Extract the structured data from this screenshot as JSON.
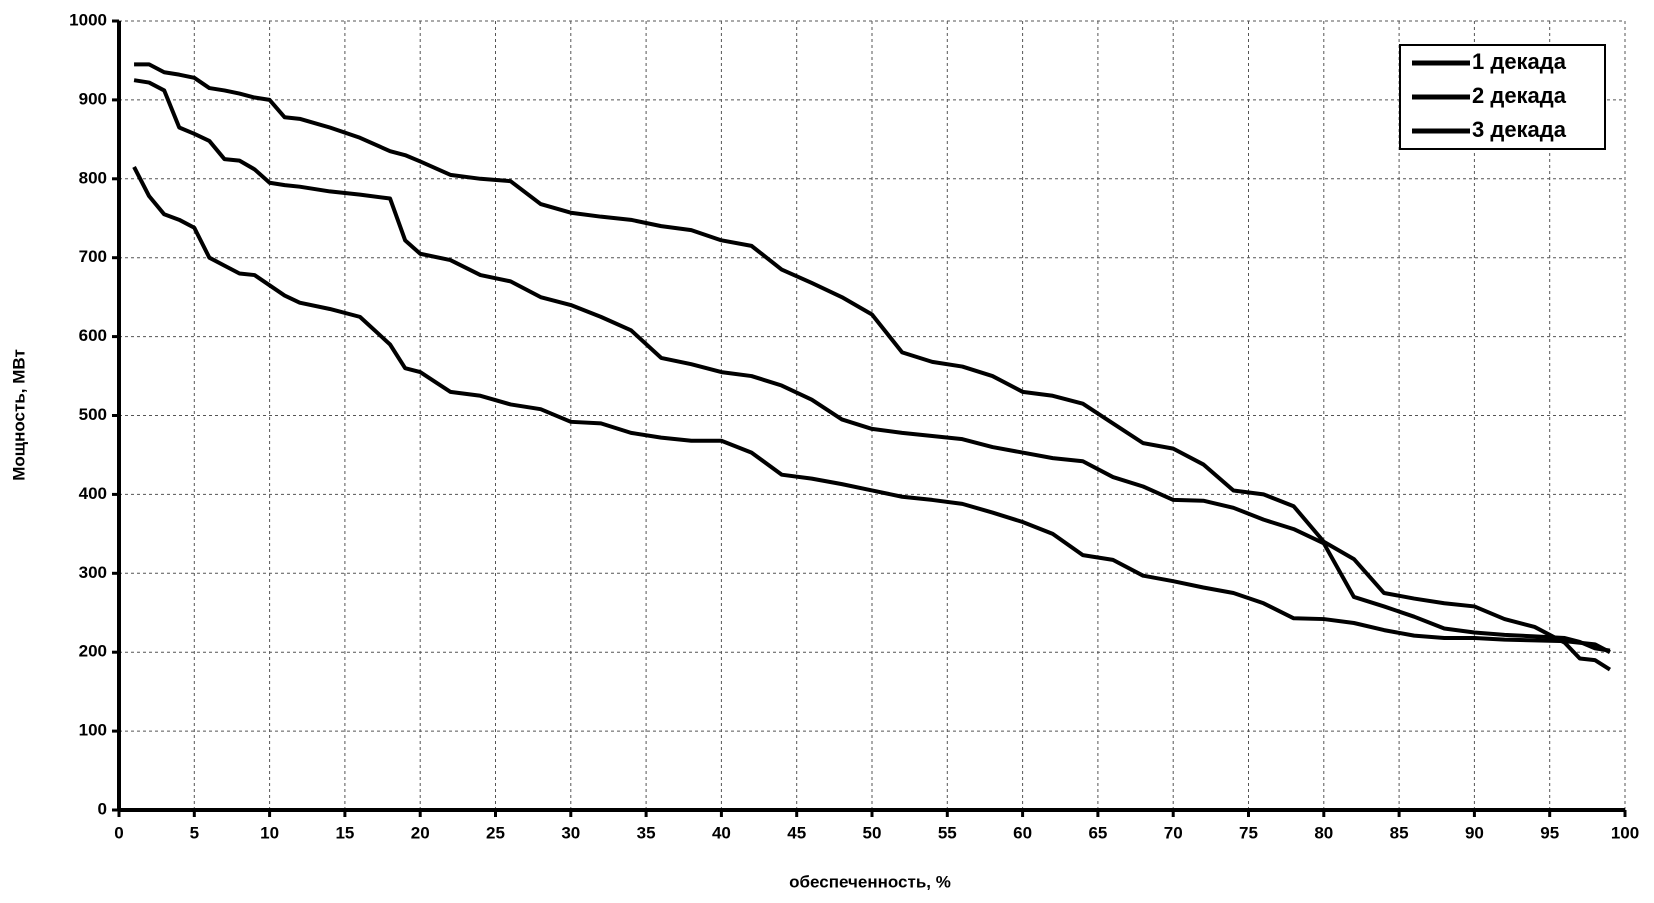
{
  "chart_data": {
    "type": "line",
    "x_label": "обеспеченность, %",
    "y_label": "Мощность, МВт",
    "x": [
      1,
      2,
      3,
      4,
      5,
      6,
      7,
      8,
      9,
      10,
      11,
      12,
      14,
      16,
      18,
      19,
      20,
      22,
      24,
      26,
      28,
      30,
      32,
      34,
      36,
      38,
      40,
      42,
      44,
      46,
      48,
      50,
      52,
      54,
      56,
      58,
      60,
      62,
      64,
      66,
      68,
      70,
      72,
      74,
      76,
      78,
      80,
      82,
      84,
      86,
      88,
      90,
      92,
      94,
      96,
      97,
      98,
      99
    ],
    "series": [
      {
        "name": "1 декада",
        "color": "#000000",
        "values": [
          945,
          945,
          935,
          932,
          928,
          915,
          912,
          908,
          903,
          900,
          878,
          876,
          865,
          852,
          835,
          830,
          822,
          805,
          800,
          797,
          768,
          757,
          752,
          748,
          740,
          735,
          722,
          715,
          685,
          668,
          650,
          628,
          580,
          568,
          562,
          550,
          530,
          525,
          515,
          490,
          465,
          458,
          438,
          405,
          400,
          385,
          340,
          318,
          275,
          268,
          262,
          258,
          242,
          232,
          212,
          192,
          190,
          178
        ]
      },
      {
        "name": "2 декада",
        "color": "#000000",
        "values": [
          925,
          922,
          912,
          865,
          857,
          848,
          825,
          823,
          812,
          795,
          792,
          790,
          784,
          780,
          775,
          722,
          705,
          697,
          678,
          670,
          650,
          640,
          625,
          608,
          573,
          565,
          555,
          550,
          538,
          520,
          495,
          483,
          478,
          474,
          470,
          460,
          453,
          446,
          442,
          422,
          410,
          393,
          392,
          383,
          368,
          356,
          338,
          270,
          258,
          245,
          230,
          225,
          222,
          220,
          218,
          213,
          205,
          202
        ]
      },
      {
        "name": "3 декада",
        "color": "#000000",
        "values": [
          815,
          778,
          755,
          748,
          738,
          700,
          690,
          680,
          678,
          665,
          652,
          643,
          635,
          625,
          590,
          560,
          555,
          530,
          525,
          514,
          508,
          492,
          490,
          478,
          472,
          468,
          468,
          453,
          425,
          420,
          413,
          405,
          397,
          393,
          388,
          377,
          365,
          350,
          323,
          317,
          297,
          290,
          282,
          275,
          262,
          243,
          242,
          237,
          228,
          221,
          218,
          218,
          216,
          215,
          214,
          212,
          210,
          200
        ]
      }
    ],
    "xlim": [
      0,
      100
    ],
    "xticks": [
      0,
      5,
      10,
      15,
      20,
      25,
      30,
      35,
      40,
      45,
      50,
      55,
      60,
      65,
      70,
      75,
      80,
      85,
      90,
      95,
      100
    ],
    "ylim": [
      0,
      1000
    ],
    "yticks": [
      0,
      100,
      200,
      300,
      400,
      500,
      600,
      700,
      800,
      900,
      1000
    ],
    "grid": true,
    "legend": "top-right"
  }
}
